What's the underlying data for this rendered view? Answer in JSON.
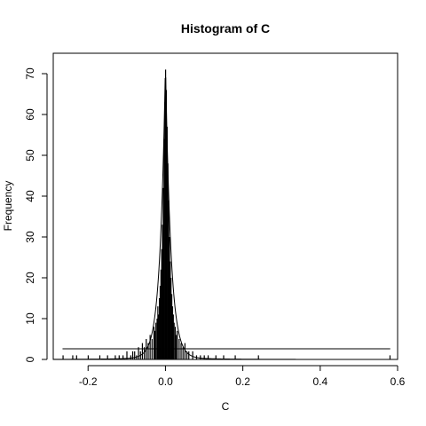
{
  "chart_data": {
    "type": "bar",
    "title": "Histogram of C",
    "xlabel": "C",
    "ylabel": "Frequency",
    "xlim": [
      -0.29,
      0.6
    ],
    "ylim": [
      0,
      75
    ],
    "x_ticks": [
      -0.2,
      0.0,
      0.2,
      0.4,
      0.6
    ],
    "x_tick_labels": [
      "-0.2",
      "0.0",
      "0.2",
      "0.4",
      "0.6"
    ],
    "y_ticks": [
      0,
      10,
      20,
      30,
      40,
      50,
      60,
      70
    ],
    "y_tick_labels": [
      "0",
      "10",
      "20",
      "30",
      "40",
      "50",
      "60",
      "70"
    ],
    "grid": false,
    "overlay_density_peak": 72,
    "overlay_density_width": 0.014,
    "histogram": {
      "bin_width": 0.002,
      "bins": [
        {
          "x": -0.265,
          "count": 1
        },
        {
          "x": -0.24,
          "count": 1
        },
        {
          "x": -0.23,
          "count": 1
        },
        {
          "x": -0.2,
          "count": 1
        },
        {
          "x": -0.17,
          "count": 1
        },
        {
          "x": -0.15,
          "count": 1
        },
        {
          "x": -0.13,
          "count": 1
        },
        {
          "x": -0.12,
          "count": 1
        },
        {
          "x": -0.11,
          "count": 1
        },
        {
          "x": -0.1,
          "count": 2
        },
        {
          "x": -0.09,
          "count": 1
        },
        {
          "x": -0.085,
          "count": 2
        },
        {
          "x": -0.08,
          "count": 2
        },
        {
          "x": -0.075,
          "count": 1
        },
        {
          "x": -0.07,
          "count": 3
        },
        {
          "x": -0.065,
          "count": 2
        },
        {
          "x": -0.06,
          "count": 4
        },
        {
          "x": -0.055,
          "count": 3
        },
        {
          "x": -0.05,
          "count": 5
        },
        {
          "x": -0.045,
          "count": 4
        },
        {
          "x": -0.04,
          "count": 6
        },
        {
          "x": -0.035,
          "count": 5
        },
        {
          "x": -0.03,
          "count": 8
        },
        {
          "x": -0.028,
          "count": 7
        },
        {
          "x": -0.025,
          "count": 9
        },
        {
          "x": -0.022,
          "count": 10
        },
        {
          "x": -0.02,
          "count": 13
        },
        {
          "x": -0.018,
          "count": 11
        },
        {
          "x": -0.016,
          "count": 15
        },
        {
          "x": -0.014,
          "count": 18
        },
        {
          "x": -0.012,
          "count": 22
        },
        {
          "x": -0.01,
          "count": 27
        },
        {
          "x": -0.008,
          "count": 33
        },
        {
          "x": -0.006,
          "count": 42
        },
        {
          "x": -0.004,
          "count": 54
        },
        {
          "x": -0.002,
          "count": 63
        },
        {
          "x": 0.0,
          "count": 71
        },
        {
          "x": 0.002,
          "count": 66
        },
        {
          "x": 0.004,
          "count": 57
        },
        {
          "x": 0.006,
          "count": 48
        },
        {
          "x": 0.008,
          "count": 39
        },
        {
          "x": 0.01,
          "count": 30
        },
        {
          "x": 0.012,
          "count": 24
        },
        {
          "x": 0.014,
          "count": 20
        },
        {
          "x": 0.016,
          "count": 16
        },
        {
          "x": 0.018,
          "count": 13
        },
        {
          "x": 0.02,
          "count": 11
        },
        {
          "x": 0.022,
          "count": 9
        },
        {
          "x": 0.025,
          "count": 8
        },
        {
          "x": 0.028,
          "count": 6
        },
        {
          "x": 0.03,
          "count": 7
        },
        {
          "x": 0.035,
          "count": 5
        },
        {
          "x": 0.04,
          "count": 4
        },
        {
          "x": 0.045,
          "count": 3
        },
        {
          "x": 0.05,
          "count": 4
        },
        {
          "x": 0.055,
          "count": 2
        },
        {
          "x": 0.06,
          "count": 2
        },
        {
          "x": 0.07,
          "count": 2
        },
        {
          "x": 0.08,
          "count": 1
        },
        {
          "x": 0.09,
          "count": 1
        },
        {
          "x": 0.1,
          "count": 1
        },
        {
          "x": 0.11,
          "count": 1
        },
        {
          "x": 0.13,
          "count": 1
        },
        {
          "x": 0.15,
          "count": 1
        },
        {
          "x": 0.18,
          "count": 1
        },
        {
          "x": 0.24,
          "count": 1
        },
        {
          "x": 0.58,
          "count": 1
        }
      ]
    }
  }
}
